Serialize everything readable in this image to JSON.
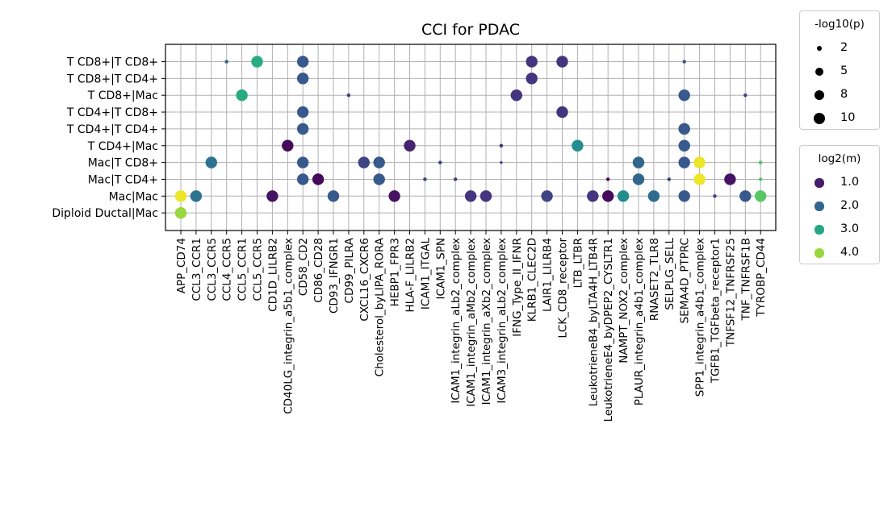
{
  "chart_data": {
    "type": "scatter",
    "title": "CCI for PDAC",
    "xlabel": "",
    "ylabel": "",
    "grid": true,
    "x_categories": [
      "APP_CD74",
      "CCL3_CCR1",
      "CCL3_CCR5",
      "CCL4_CCR5",
      "CCL5_CCR1",
      "CCL5_CCR5",
      "CD1D_LILRB2",
      "CD40LG_integrin_a5b1_complex",
      "CD58_CD2",
      "CD86_CD28",
      "CD93_IFNGR1",
      "CD99_PILRA",
      "CXCL16_CXCR6",
      "Cholesterol_byLIPA_RORA",
      "HEBP1_FPR3",
      "HLA-F_LILRB2",
      "ICAM1_ITGAL",
      "ICAM1_SPN",
      "ICAM1_integrin_aLb2_complex",
      "ICAM1_integrin_aMb2_complex",
      "ICAM1_integrin_aXb2_complex",
      "ICAM3_integrin_aLb2_complex",
      "IFNG_Type_II_IFNR",
      "KLRB1_CLEC2D",
      "LAIR1_LILRB4",
      "LCK_CD8_receptor",
      "LTB_LTBR",
      "LeukotrieneB4_byLTA4H_LTB4R",
      "LeukotrieneE4_byDPEP2_CYSLTR1",
      "NAMPT_NOX2_complex",
      "PLAUR_integrin_a4b1_complex",
      "RNASET2_TLR8",
      "SELPLG_SELL",
      "SEMA4D_PTPRC",
      "SPP1_integrin_a4b1_complex",
      "TGFB1_TGFbeta_receptor1",
      "TNFSF12_TNFRSF25",
      "TNF_TNFRSF1B",
      "TYROBP_CD44"
    ],
    "y_categories": [
      "T CD8+|T CD8+",
      "T CD8+|T CD4+",
      "T CD8+|Mac",
      "T CD4+|T CD8+",
      "T CD4+|T CD4+",
      "T CD4+|Mac",
      "Mac|T CD8+",
      "Mac|T CD4+",
      "Mac|Mac",
      "Diploid Ductal|Mac"
    ],
    "size_legend": {
      "title": "-log10(p)",
      "values": [
        2,
        5,
        8,
        10
      ],
      "labels": [
        "2",
        "5",
        "8",
        "10"
      ]
    },
    "color_legend": {
      "title": "log2(m)",
      "values": [
        1.0,
        2.0,
        3.0,
        4.0
      ],
      "labels": [
        "1.0",
        "2.0",
        "3.0",
        "4.0"
      ],
      "colormap": "viridis",
      "range": [
        0.7,
        4.6
      ]
    },
    "points": [
      {
        "x": "CCL4_CCR5",
        "y": "T CD8+|T CD8+",
        "p": 1,
        "m": 2.0
      },
      {
        "x": "CCL5_CCR5",
        "y": "T CD8+|T CD8+",
        "p": 10,
        "m": 3.1
      },
      {
        "x": "CD58_CD2",
        "y": "T CD8+|T CD8+",
        "p": 10,
        "m": 1.8
      },
      {
        "x": "KLRB1_CLEC2D",
        "y": "T CD8+|T CD8+",
        "p": 10,
        "m": 1.3
      },
      {
        "x": "LCK_CD8_receptor",
        "y": "T CD8+|T CD8+",
        "p": 10,
        "m": 1.3
      },
      {
        "x": "SEMA4D_PTPRC",
        "y": "T CD8+|T CD8+",
        "p": 1,
        "m": 1.8
      },
      {
        "x": "CD58_CD2",
        "y": "T CD8+|T CD4+",
        "p": 10,
        "m": 1.8
      },
      {
        "x": "KLRB1_CLEC2D",
        "y": "T CD8+|T CD4+",
        "p": 10,
        "m": 1.3
      },
      {
        "x": "CCL5_CCR1",
        "y": "T CD8+|Mac",
        "p": 10,
        "m": 3.1
      },
      {
        "x": "CD99_PILRA",
        "y": "T CD8+|Mac",
        "p": 1,
        "m": 1.5
      },
      {
        "x": "IFNG_Type_II_IFNR",
        "y": "T CD8+|Mac",
        "p": 10,
        "m": 1.3
      },
      {
        "x": "SEMA4D_PTPRC",
        "y": "T CD8+|Mac",
        "p": 10,
        "m": 1.8
      },
      {
        "x": "TNF_TNFRSF1B",
        "y": "T CD8+|Mac",
        "p": 1,
        "m": 1.5
      },
      {
        "x": "CD58_CD2",
        "y": "T CD4+|T CD8+",
        "p": 10,
        "m": 1.8
      },
      {
        "x": "LCK_CD8_receptor",
        "y": "T CD4+|T CD8+",
        "p": 10,
        "m": 1.3
      },
      {
        "x": "CD58_CD2",
        "y": "T CD4+|T CD4+",
        "p": 10,
        "m": 1.8
      },
      {
        "x": "SEMA4D_PTPRC",
        "y": "T CD4+|T CD4+",
        "p": 10,
        "m": 1.8
      },
      {
        "x": "CD40LG_integrin_a5b1_complex",
        "y": "T CD4+|Mac",
        "p": 10,
        "m": 0.8
      },
      {
        "x": "HLA-F_LILRB2",
        "y": "T CD4+|Mac",
        "p": 10,
        "m": 1.1
      },
      {
        "x": "ICAM3_integrin_aLb2_complex",
        "y": "T CD4+|Mac",
        "p": 1,
        "m": 1.3
      },
      {
        "x": "LTB_LTBR",
        "y": "T CD4+|Mac",
        "p": 10,
        "m": 2.6
      },
      {
        "x": "SEMA4D_PTPRC",
        "y": "T CD4+|Mac",
        "p": 10,
        "m": 1.8
      },
      {
        "x": "CCL3_CCR5",
        "y": "Mac|T CD8+",
        "p": 10,
        "m": 2.2
      },
      {
        "x": "CD58_CD2",
        "y": "Mac|T CD8+",
        "p": 10,
        "m": 1.8
      },
      {
        "x": "CXCL16_CXCR6",
        "y": "Mac|T CD8+",
        "p": 10,
        "m": 1.5
      },
      {
        "x": "Cholesterol_byLIPA_RORA",
        "y": "Mac|T CD8+",
        "p": 10,
        "m": 1.8
      },
      {
        "x": "ICAM1_SPN",
        "y": "Mac|T CD8+",
        "p": 1,
        "m": 1.5
      },
      {
        "x": "ICAM3_integrin_aLb2_complex",
        "y": "Mac|T CD8+",
        "p": 0.6,
        "m": 1.5
      },
      {
        "x": "PLAUR_integrin_a4b1_complex",
        "y": "Mac|T CD8+",
        "p": 10,
        "m": 2.0
      },
      {
        "x": "SEMA4D_PTPRC",
        "y": "Mac|T CD8+",
        "p": 10,
        "m": 1.8
      },
      {
        "x": "SPP1_integrin_a4b1_complex",
        "y": "Mac|T CD8+",
        "p": 10,
        "m": 4.5
      },
      {
        "x": "TYROBP_CD44",
        "y": "Mac|T CD8+",
        "p": 1,
        "m": 3.5
      },
      {
        "x": "CD58_CD2",
        "y": "Mac|T CD4+",
        "p": 10,
        "m": 1.8
      },
      {
        "x": "CD86_CD28",
        "y": "Mac|T CD4+",
        "p": 10,
        "m": 0.8
      },
      {
        "x": "Cholesterol_byLIPA_RORA",
        "y": "Mac|T CD4+",
        "p": 10,
        "m": 1.8
      },
      {
        "x": "ICAM1_ITGAL",
        "y": "Mac|T CD4+",
        "p": 1,
        "m": 1.5
      },
      {
        "x": "ICAM1_integrin_aLb2_complex",
        "y": "Mac|T CD4+",
        "p": 1,
        "m": 1.5
      },
      {
        "x": "LeukotrieneE4_byDPEP2_CYSLTR1",
        "y": "Mac|T CD4+",
        "p": 1,
        "m": 0.9
      },
      {
        "x": "PLAUR_integrin_a4b1_complex",
        "y": "Mac|T CD4+",
        "p": 10,
        "m": 2.0
      },
      {
        "x": "SELPLG_SELL",
        "y": "Mac|T CD4+",
        "p": 1,
        "m": 1.5
      },
      {
        "x": "SPP1_integrin_a4b1_complex",
        "y": "Mac|T CD4+",
        "p": 10,
        "m": 4.5
      },
      {
        "x": "TNFSF12_TNFRSF25",
        "y": "Mac|T CD4+",
        "p": 10,
        "m": 0.9
      },
      {
        "x": "TYROBP_CD44",
        "y": "Mac|T CD4+",
        "p": 0.8,
        "m": 3.5
      },
      {
        "x": "APP_CD74",
        "y": "Mac|Mac",
        "p": 10,
        "m": 4.5
      },
      {
        "x": "CCL3_CCR1",
        "y": "Mac|Mac",
        "p": 10,
        "m": 2.2
      },
      {
        "x": "CD1D_LILRB2",
        "y": "Mac|Mac",
        "p": 10,
        "m": 0.9
      },
      {
        "x": "CD93_IFNGR1",
        "y": "Mac|Mac",
        "p": 10,
        "m": 1.8
      },
      {
        "x": "HEBP1_FPR3",
        "y": "Mac|Mac",
        "p": 10,
        "m": 0.9
      },
      {
        "x": "ICAM1_integrin_aMb2_complex",
        "y": "Mac|Mac",
        "p": 10,
        "m": 1.3
      },
      {
        "x": "ICAM1_integrin_aXb2_complex",
        "y": "Mac|Mac",
        "p": 10,
        "m": 1.3
      },
      {
        "x": "LAIR1_LILRB4",
        "y": "Mac|Mac",
        "p": 10,
        "m": 1.5
      },
      {
        "x": "LeukotrieneB4_byLTA4H_LTB4R",
        "y": "Mac|Mac",
        "p": 10,
        "m": 1.3
      },
      {
        "x": "LeukotrieneE4_byDPEP2_CYSLTR1",
        "y": "Mac|Mac",
        "p": 10,
        "m": 0.8
      },
      {
        "x": "NAMPT_NOX2_complex",
        "y": "Mac|Mac",
        "p": 10,
        "m": 2.6
      },
      {
        "x": "RNASET2_TLR8",
        "y": "Mac|Mac",
        "p": 10,
        "m": 2.1
      },
      {
        "x": "SEMA4D_PTPRC",
        "y": "Mac|Mac",
        "p": 10,
        "m": 1.8
      },
      {
        "x": "TGFB1_TGFbeta_receptor1",
        "y": "Mac|Mac",
        "p": 1,
        "m": 1.5
      },
      {
        "x": "TNF_TNFRSF1B",
        "y": "Mac|Mac",
        "p": 10,
        "m": 1.8
      },
      {
        "x": "TYROBP_CD44",
        "y": "Mac|Mac",
        "p": 10,
        "m": 3.6
      },
      {
        "x": "APP_CD74",
        "y": "Diploid Ductal|Mac",
        "p": 10,
        "m": 4.0
      }
    ]
  }
}
